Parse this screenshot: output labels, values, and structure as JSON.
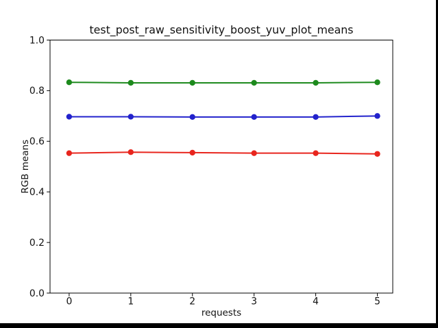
{
  "frame": {
    "background_color": "#ffffff",
    "bottom_band_color": "#000000",
    "right_stripe_color": "#000000"
  },
  "chart_data": {
    "type": "line",
    "title": "test_post_raw_sensitivity_boost_yuv_plot_means",
    "xlabel": "requests",
    "ylabel": "RGB means",
    "x": [
      0,
      1,
      2,
      3,
      4,
      5
    ],
    "xticks": [
      "0",
      "1",
      "2",
      "3",
      "4",
      "5"
    ],
    "yticks": [
      "0.0",
      "0.2",
      "0.4",
      "0.6",
      "0.8",
      "1.0"
    ],
    "xlim": [
      -0.31,
      5.25
    ],
    "ylim": [
      0.0,
      1.0
    ],
    "grid": false,
    "legend": "none",
    "axis_color": "#000000",
    "text_color": "#111111",
    "series": [
      {
        "name": "green",
        "color": "#1d8a1d",
        "values": [
          0.833,
          0.831,
          0.831,
          0.831,
          0.831,
          0.833
        ]
      },
      {
        "name": "blue",
        "color": "#2222cc",
        "values": [
          0.697,
          0.697,
          0.696,
          0.696,
          0.696,
          0.7
        ]
      },
      {
        "name": "red",
        "color": "#e8251d",
        "values": [
          0.553,
          0.557,
          0.555,
          0.553,
          0.553,
          0.55
        ]
      }
    ]
  }
}
